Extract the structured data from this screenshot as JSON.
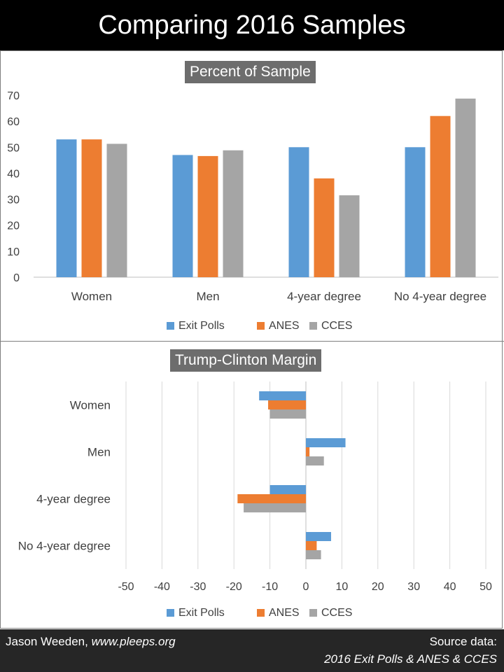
{
  "header": {
    "title": "Comparing 2016 Samples"
  },
  "footer": {
    "author": "Jason Weeden,",
    "url": "www.pleeps.org",
    "source_label": "Source data:",
    "source_text": "2016 Exit Polls & ANES & CCES"
  },
  "colors": {
    "Exit Polls": "#5b9bd5",
    "ANES": "#ed7d31",
    "CCES": "#a5a5a5"
  },
  "chart_data": [
    {
      "type": "bar",
      "title": "Percent of Sample",
      "categories": [
        "Women",
        "Men",
        "4-year degree",
        "No 4-year degree"
      ],
      "series": [
        {
          "name": "Exit Polls",
          "values": [
            53,
            47,
            50,
            50
          ]
        },
        {
          "name": "ANES",
          "values": [
            53,
            46.6,
            38,
            62
          ]
        },
        {
          "name": "CCES",
          "values": [
            51.3,
            48.8,
            31.5,
            68.7
          ]
        }
      ],
      "ylim": [
        0,
        70
      ],
      "yticks": [
        "0",
        "10",
        "20",
        "30",
        "40",
        "50",
        "60",
        "70"
      ],
      "grid": false,
      "legend": "bottom"
    },
    {
      "type": "bar",
      "orientation": "horizontal",
      "title": "Trump-Clinton Margin",
      "categories": [
        "Women",
        "Men",
        "4-year degree",
        "No 4-year degree"
      ],
      "series": [
        {
          "name": "Exit Polls",
          "values": [
            -13,
            11,
            -10,
            7
          ]
        },
        {
          "name": "ANES",
          "values": [
            -10.5,
            1,
            -19,
            3
          ]
        },
        {
          "name": "CCES",
          "values": [
            -10,
            5,
            -17.3,
            4.2
          ]
        }
      ],
      "xlim": [
        -50,
        50
      ],
      "xticks": [
        "-50",
        "-40",
        "-30",
        "-20",
        "-10",
        "0",
        "10",
        "20",
        "30",
        "40",
        "50"
      ],
      "grid": true,
      "legend": "bottom"
    }
  ]
}
